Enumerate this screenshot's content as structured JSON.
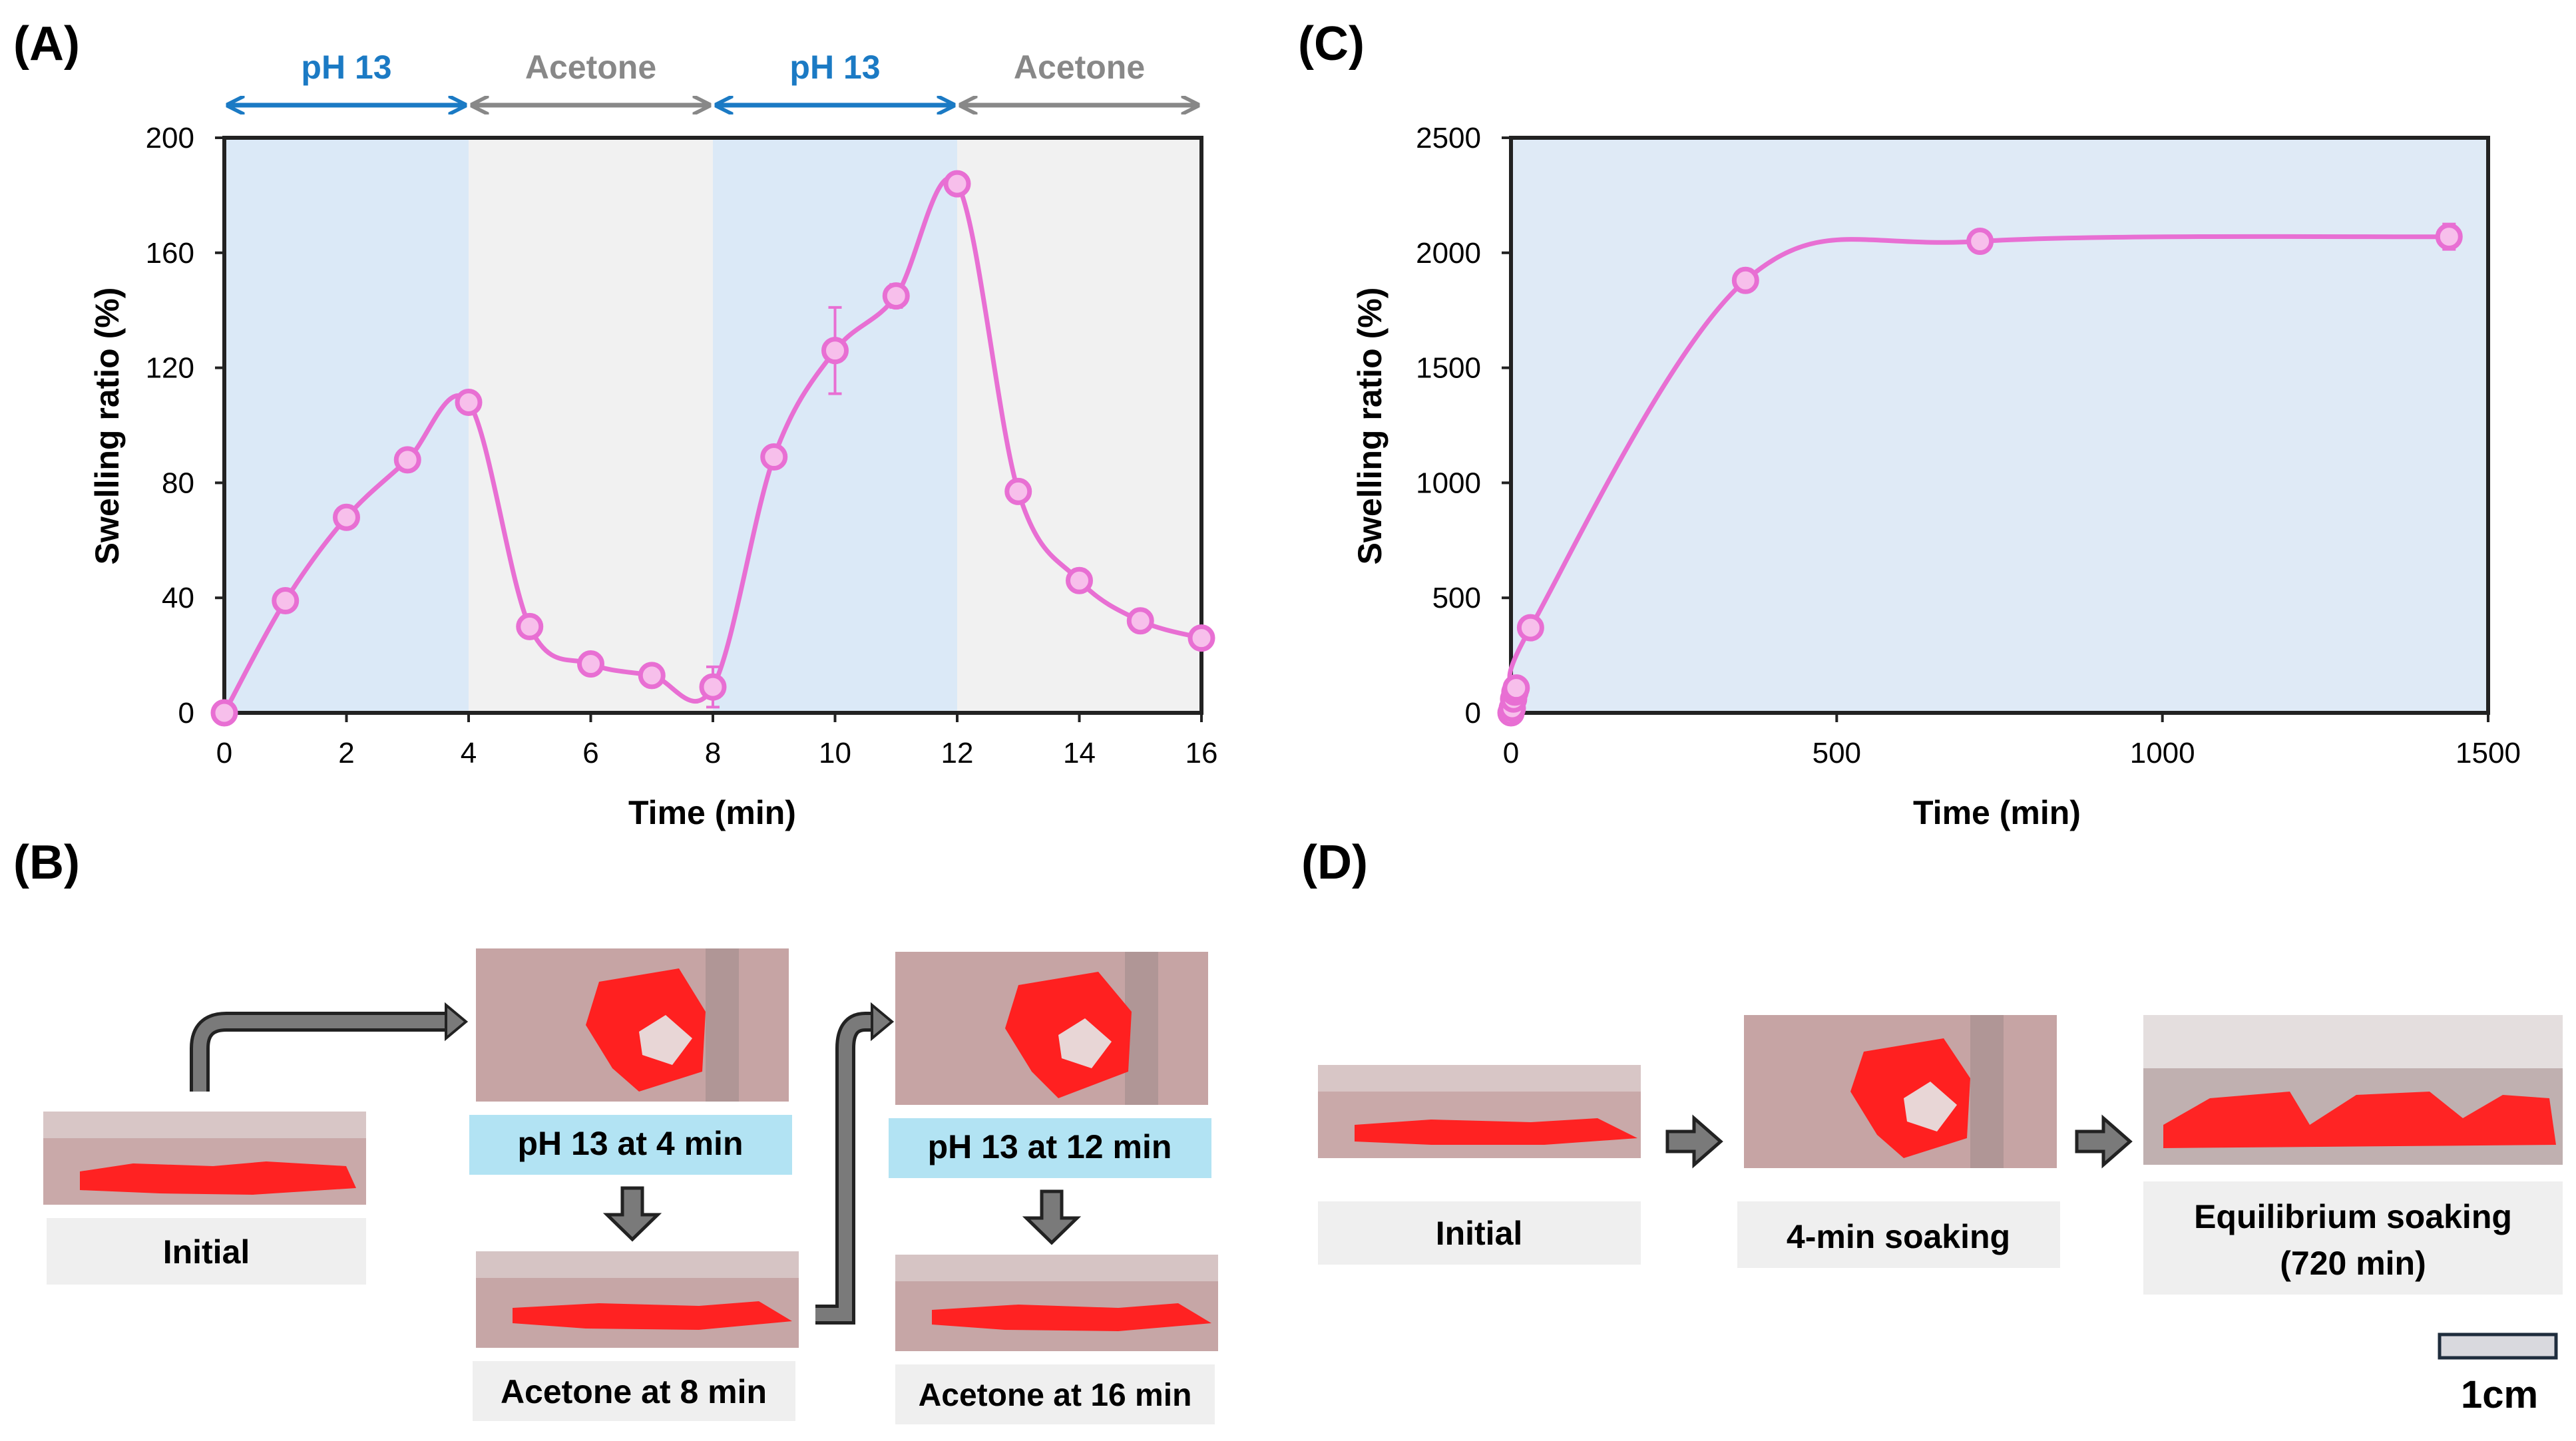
{
  "colors": {
    "ph_bg": "#dbe9f7",
    "acetone_bg": "#f1f1f1",
    "c_bg": "#dfeaf6",
    "line": "#e86fd3",
    "marker_fill": "#f7bfeb",
    "ph_text": "#1b7ac4",
    "acetone_text": "#888888",
    "cap_gray": "#efefef",
    "cap_blue": "#b2e3f3",
    "gel_red": "#ff2222",
    "photo_bg": "#c8a8a8",
    "arrow_gray": "#7a7a7a",
    "axis": "#222222"
  },
  "panel_labels": {
    "a": "(A)",
    "b": "(B)",
    "c": "(C)",
    "d": "(D)"
  },
  "chart_data": [
    {
      "id": "A",
      "type": "line",
      "xlabel": "Time (min)",
      "ylabel": "Swelling ratio (%)",
      "xlim": [
        0,
        16
      ],
      "ylim": [
        0,
        200
      ],
      "xticks": [
        0,
        2,
        4,
        6,
        8,
        10,
        12,
        14,
        16
      ],
      "yticks": [
        0,
        40,
        80,
        120,
        160,
        200
      ],
      "phases": [
        {
          "label": "pH 13",
          "start": 0,
          "end": 4,
          "kind": "ph"
        },
        {
          "label": "Acetone",
          "start": 4,
          "end": 8,
          "kind": "acetone"
        },
        {
          "label": "pH 13",
          "start": 8,
          "end": 12,
          "kind": "ph"
        },
        {
          "label": "Acetone",
          "start": 12,
          "end": 16,
          "kind": "acetone"
        }
      ],
      "x": [
        0,
        1,
        2,
        3,
        4,
        5,
        6,
        7,
        8,
        9,
        10,
        11,
        12,
        13,
        14,
        15,
        16
      ],
      "y": [
        0,
        39,
        68,
        88,
        108,
        30,
        17,
        13,
        9,
        89,
        126,
        145,
        184,
        77,
        46,
        32,
        26
      ],
      "error": [
        0,
        0,
        0,
        0,
        0,
        0,
        0,
        0,
        7,
        0,
        15,
        4,
        0,
        0,
        0,
        0,
        0
      ]
    },
    {
      "id": "C",
      "type": "line",
      "xlabel": "Time (min)",
      "ylabel": "Swelling ratio (%)",
      "xlim": [
        0,
        1500
      ],
      "ylim": [
        0,
        2500
      ],
      "xticks": [
        0,
        500,
        1000,
        1500
      ],
      "yticks": [
        0,
        500,
        1000,
        1500,
        2000,
        2500
      ],
      "x": [
        0,
        2,
        4,
        6,
        8,
        30,
        360,
        720,
        1440
      ],
      "y": [
        0,
        20,
        60,
        90,
        108,
        370,
        1880,
        2050,
        2070
      ],
      "error": [
        0,
        0,
        0,
        0,
        0,
        0,
        0,
        0,
        55
      ]
    }
  ],
  "panel_b": {
    "initial": "Initial",
    "step1": "pH 13 at 4 min",
    "step2": "Acetone at 8 min",
    "step3": "pH 13 at 12 min",
    "step4": "Acetone at 16 min"
  },
  "panel_d": {
    "initial": "Initial",
    "soak4": "4-min soaking",
    "eq_line1": "Equilibrium  soaking",
    "eq_line2": "(720 min)",
    "scale_label": "1cm"
  }
}
